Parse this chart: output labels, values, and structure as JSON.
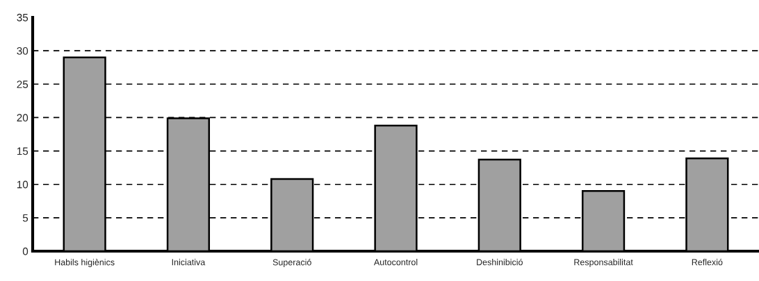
{
  "chart_data": {
    "type": "bar",
    "categories": [
      "Habils higiènics",
      "Iniciativa",
      "Superació",
      "Autocontrol",
      "Deshinibició",
      "Responsabilitat",
      "Reflexió"
    ],
    "values": [
      29,
      19.9,
      10.8,
      18.8,
      13.7,
      9.0,
      13.9
    ],
    "color": "#a0a0a0",
    "ylim": [
      0,
      35
    ],
    "yticks": [
      0,
      5,
      10,
      15,
      20,
      25,
      30,
      35
    ],
    "grid": "y"
  }
}
